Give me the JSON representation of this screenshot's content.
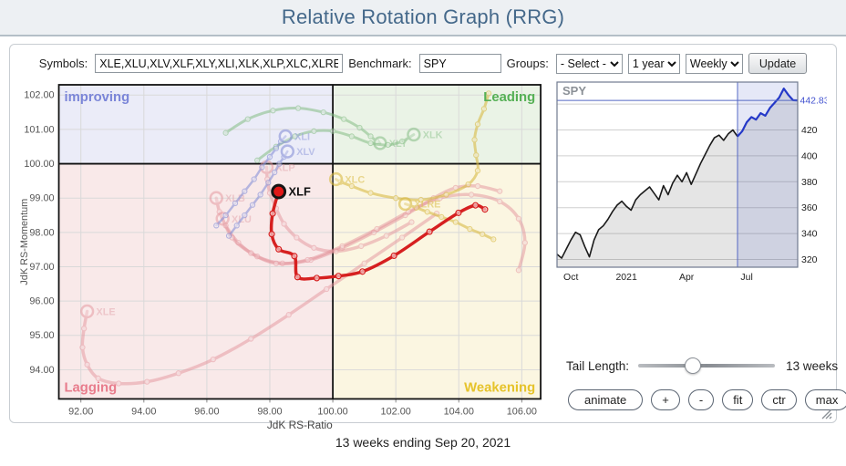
{
  "header": {
    "title": "Relative Rotation Graph (RRG)"
  },
  "toolbar": {
    "symbols_label": "Symbols:",
    "symbols_value": "XLE,XLU,XLV,XLF,XLY,XLI,XLK,XLP,XLC,XLRE,XL",
    "benchmark_label": "Benchmark:",
    "benchmark_value": "SPY",
    "groups_label": "Groups:",
    "groups_value": "- Select -",
    "period_value": "1 year",
    "interval_value": "Weekly",
    "update_label": "Update"
  },
  "controls": {
    "tail_label": "Tail Length:",
    "tail_value": "13 weeks",
    "tail_percent": 40,
    "buttons": [
      {
        "label": "animate",
        "name": "animate-button",
        "wide": true
      },
      {
        "label": "+",
        "name": "zoom-in-button",
        "wide": false
      },
      {
        "label": "-",
        "name": "zoom-out-button",
        "wide": false
      },
      {
        "label": "fit",
        "name": "fit-button",
        "wide": false
      },
      {
        "label": "ctr",
        "name": "center-button",
        "wide": false
      },
      {
        "label": "max",
        "name": "max-button",
        "wide": false
      }
    ]
  },
  "footer": {
    "status": "13 weeks ending Sep 20, 2021"
  },
  "chart_data": [
    {
      "type": "scatter",
      "title": "Relative Rotation Graph",
      "xlabel": "JdK RS-Ratio",
      "ylabel": "JdK RS-Momentum",
      "xlim": [
        91.3,
        106.6
      ],
      "ylim": [
        93.15,
        102.3
      ],
      "xticks": [
        92,
        94,
        96,
        98,
        100,
        102,
        104,
        106
      ],
      "yticks": [
        94,
        95,
        96,
        97,
        98,
        99,
        100,
        101,
        102
      ],
      "center": [
        100,
        100
      ],
      "quadrants": [
        {
          "position": "top-left",
          "label": "improving",
          "text_color": "#7a85d8",
          "bg": "#ebecf8"
        },
        {
          "position": "top-right",
          "label": "Leading",
          "text_color": "#55b055",
          "bg": "#eaf3e6"
        },
        {
          "position": "bottom-left",
          "label": "Lagging",
          "text_color": "#e87c8c",
          "bg": "#f9e9e9"
        },
        {
          "position": "bottom-right",
          "label": "Weakening",
          "text_color": "#e6c32a",
          "bg": "#fbf6e1"
        }
      ],
      "palettes": {
        "red": {
          "line": "#d62020",
          "label": "#111111",
          "opacity": 1,
          "width": 3.5
        },
        "pink": {
          "line": "#e4949c",
          "label": "#e2a3ab",
          "opacity": 0.5,
          "width": 3.5
        },
        "blue": {
          "line": "#8892d8",
          "label": "#9aa3de",
          "opacity": 0.6,
          "width": 2.5
        },
        "green": {
          "line": "#85bd85",
          "label": "#93c693",
          "opacity": 0.55,
          "width": 3
        },
        "yellow": {
          "line": "#d9bb45",
          "label": "#ddc155",
          "opacity": 0.6,
          "width": 3
        }
      },
      "series": [
        {
          "name": "XLE",
          "palette": "pink",
          "highlight": false,
          "points": [
            [
              103.3,
              98.55
            ],
            [
              102.2,
              97.85
            ],
            [
              101.0,
              97.1
            ],
            [
              99.8,
              96.35
            ],
            [
              98.6,
              95.6
            ],
            [
              97.4,
              94.9
            ],
            [
              96.2,
              94.3
            ],
            [
              95.1,
              93.9
            ],
            [
              94.1,
              93.65
            ],
            [
              93.2,
              93.6
            ],
            [
              92.55,
              93.75
            ],
            [
              92.2,
              94.15
            ],
            [
              92.05,
              94.65
            ],
            [
              92.1,
              95.2
            ],
            [
              92.2,
              95.7
            ]
          ]
        },
        {
          "name": "XLB",
          "palette": "pink",
          "highlight": false,
          "points": [
            [
              105.3,
              99.2
            ],
            [
              104.6,
              99.35
            ],
            [
              103.9,
              99.3
            ],
            [
              103.2,
              99.0
            ],
            [
              102.3,
              98.5
            ],
            [
              101.3,
              98.0
            ],
            [
              100.3,
              97.55
            ],
            [
              99.3,
              97.2
            ],
            [
              98.4,
              97.1
            ],
            [
              97.6,
              97.3
            ],
            [
              97.0,
              97.7
            ],
            [
              96.6,
              98.2
            ],
            [
              96.4,
              98.6
            ],
            [
              96.3,
              99.0
            ]
          ]
        },
        {
          "name": "XLU",
          "palette": "pink",
          "highlight": false,
          "points": [
            [
              105.9,
              96.9
            ],
            [
              106.1,
              97.7
            ],
            [
              105.9,
              98.4
            ],
            [
              105.3,
              98.9
            ],
            [
              104.4,
              99.1
            ],
            [
              103.4,
              99.0
            ],
            [
              102.4,
              98.6
            ],
            [
              101.4,
              98.1
            ],
            [
              100.3,
              97.6
            ],
            [
              99.2,
              97.2
            ],
            [
              98.2,
              97.1
            ],
            [
              97.4,
              97.4
            ],
            [
              96.8,
              97.85
            ],
            [
              96.5,
              98.4
            ]
          ]
        },
        {
          "name": "XLP",
          "palette": "pink",
          "highlight": false,
          "points": [
            [
              102.5,
              98.3
            ],
            [
              101.7,
              97.9
            ],
            [
              100.9,
              97.6
            ],
            [
              100.1,
              97.45
            ],
            [
              99.4,
              97.55
            ],
            [
              98.85,
              97.85
            ],
            [
              98.45,
              98.25
            ],
            [
              98.2,
              98.7
            ],
            [
              98.0,
              99.15
            ],
            [
              97.92,
              99.55
            ],
            [
              97.9,
              99.9
            ]
          ]
        },
        {
          "name": "XLC",
          "palette": "yellow",
          "highlight": false,
          "points": [
            [
              104.95,
              102.05
            ],
            [
              104.8,
              101.6
            ],
            [
              104.6,
              101.15
            ],
            [
              104.5,
              100.7
            ],
            [
              104.55,
              100.25
            ],
            [
              104.6,
              99.8
            ],
            [
              104.3,
              99.4
            ],
            [
              103.6,
              99.1
            ],
            [
              102.8,
              98.95
            ],
            [
              102.0,
              99.0
            ],
            [
              101.2,
              99.15
            ],
            [
              100.6,
              99.35
            ],
            [
              100.25,
              99.47
            ],
            [
              100.1,
              99.55
            ]
          ]
        },
        {
          "name": "XLRE",
          "palette": "yellow",
          "highlight": false,
          "points": [
            [
              105.1,
              97.8
            ],
            [
              104.75,
              97.95
            ],
            [
              104.35,
              98.1
            ],
            [
              103.9,
              98.3
            ],
            [
              103.45,
              98.45
            ],
            [
              103.0,
              98.6
            ],
            [
              102.65,
              98.72
            ],
            [
              102.3,
              98.83
            ]
          ]
        },
        {
          "name": "XLY",
          "palette": "green",
          "highlight": false,
          "points": [
            [
              96.6,
              100.9
            ],
            [
              97.3,
              101.3
            ],
            [
              98.1,
              101.55
            ],
            [
              98.9,
              101.62
            ],
            [
              99.7,
              101.5
            ],
            [
              100.35,
              101.3
            ],
            [
              100.85,
              101.05
            ],
            [
              101.2,
              100.8
            ],
            [
              101.4,
              100.65
            ],
            [
              101.5,
              100.6
            ]
          ]
        },
        {
          "name": "XLK",
          "palette": "green",
          "highlight": false,
          "points": [
            [
              97.6,
              100.1
            ],
            [
              98.2,
              100.5
            ],
            [
              98.8,
              100.8
            ],
            [
              99.4,
              100.95
            ],
            [
              100.0,
              100.95
            ],
            [
              100.6,
              100.8
            ],
            [
              101.2,
              100.6
            ],
            [
              101.75,
              100.55
            ],
            [
              102.2,
              100.65
            ],
            [
              102.57,
              100.85
            ]
          ]
        },
        {
          "name": "XLV",
          "palette": "blue",
          "highlight": false,
          "points": [
            [
              96.7,
              97.9
            ],
            [
              96.95,
              98.2
            ],
            [
              97.2,
              98.5
            ],
            [
              97.45,
              98.8
            ],
            [
              97.7,
              99.1
            ],
            [
              97.95,
              99.45
            ],
            [
              98.15,
              99.75
            ],
            [
              98.3,
              100.0
            ],
            [
              98.45,
              100.2
            ],
            [
              98.56,
              100.36
            ]
          ]
        },
        {
          "name": "XLI",
          "palette": "blue",
          "highlight": false,
          "points": [
            [
              96.3,
              98.2
            ],
            [
              96.6,
              98.5
            ],
            [
              96.9,
              98.85
            ],
            [
              97.2,
              99.2
            ],
            [
              97.5,
              99.55
            ],
            [
              97.75,
              99.9
            ],
            [
              98.0,
              100.2
            ],
            [
              98.2,
              100.45
            ],
            [
              98.35,
              100.65
            ],
            [
              98.5,
              100.8
            ]
          ]
        },
        {
          "name": "XLF",
          "palette": "red",
          "highlight": true,
          "points": [
            [
              104.83,
              98.67
            ],
            [
              104.53,
              98.79
            ],
            [
              103.99,
              98.57
            ],
            [
              103.07,
              98.02
            ],
            [
              101.94,
              97.32
            ],
            [
              100.94,
              96.86
            ],
            [
              100.18,
              96.73
            ],
            [
              99.49,
              96.67
            ],
            [
              98.88,
              96.7
            ],
            [
              98.78,
              97.31
            ],
            [
              98.28,
              97.51
            ],
            [
              98.06,
              97.95
            ],
            [
              98.09,
              98.55
            ],
            [
              98.28,
              99.19
            ]
          ]
        }
      ]
    },
    {
      "type": "area",
      "title": "SPY",
      "last_value": 442.83,
      "last_value_label": "442.83",
      "ylim": [
        314,
        457
      ],
      "gridlines": [
        320,
        340,
        360,
        380,
        400,
        420,
        440
      ],
      "yticks_labeled": [
        320,
        340,
        360,
        380,
        400,
        420
      ],
      "xtick_labels": [
        {
          "label": "Oct",
          "index": 3
        },
        {
          "label": "2021",
          "index": 15
        },
        {
          "label": "Apr",
          "index": 28
        },
        {
          "label": "Jul",
          "index": 41
        }
      ],
      "highlight_last_n": 13,
      "values": [
        324,
        321,
        328,
        335,
        341,
        339,
        330,
        322,
        335,
        343,
        346,
        351,
        357,
        362,
        365,
        361,
        358,
        366,
        370,
        373,
        376,
        371,
        366,
        377,
        370,
        379,
        385,
        380,
        387,
        378,
        386,
        394,
        401,
        408,
        414,
        416,
        412,
        417,
        420,
        415,
        419,
        426,
        430,
        428,
        433,
        431,
        437,
        441,
        445,
        452,
        447,
        443,
        442.83
      ],
      "colors": {
        "line": "#1a1a1a",
        "area": "rgba(110,110,110,0.18)",
        "highlight_line": "#2438c8",
        "highlight_band": "rgba(95,110,205,0.16)",
        "highlight_edge": "#5568c4",
        "grid": "#cfcfcf",
        "frame": "#707a90",
        "title": "#8b9096",
        "value_label": "#4353d0"
      }
    }
  ]
}
